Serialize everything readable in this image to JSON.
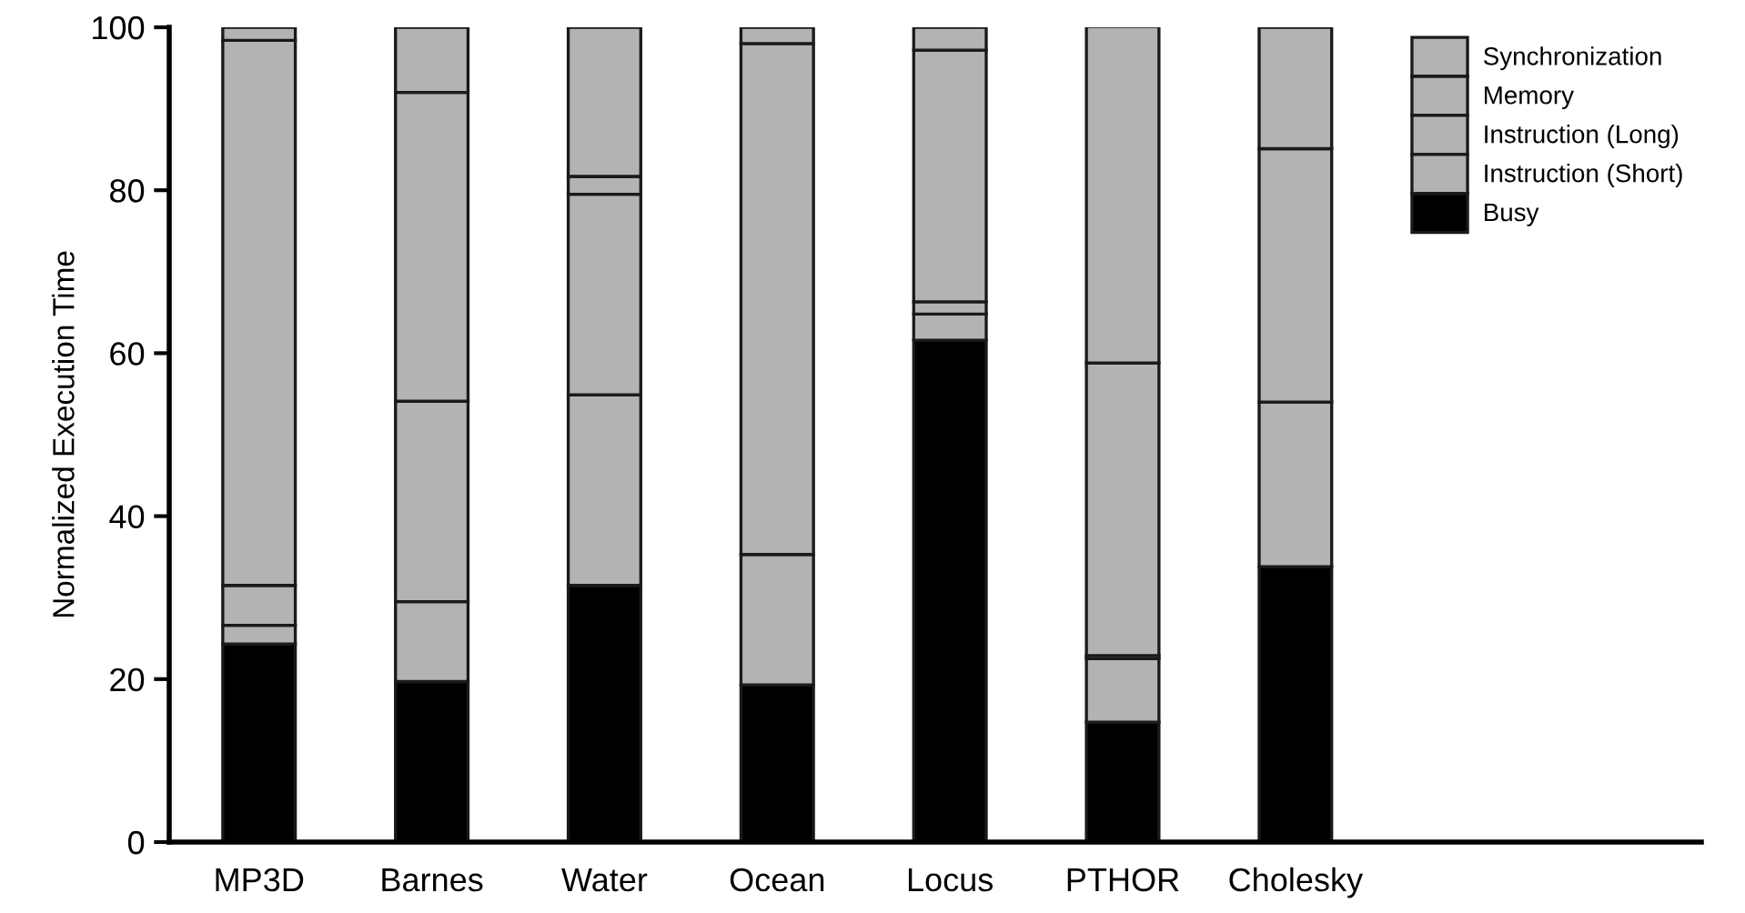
{
  "chart_data": {
    "type": "bar",
    "stacked": true,
    "ylabel": "Normalized Execution Time",
    "categories": [
      "MP3D",
      "Barnes",
      "Water",
      "Ocean",
      "Locus",
      "PTHOR",
      "Cholesky"
    ],
    "series": [
      {
        "name": "Busy",
        "color": "#000000",
        "values": [
          24.3,
          19.7,
          31.5,
          19.3,
          61.6,
          14.7,
          33.8
        ]
      },
      {
        "name": "Instruction (Short)",
        "color": "#b3b3b3",
        "values": [
          2.3,
          9.8,
          23.4,
          16.0,
          3.2,
          7.8,
          20.2
        ]
      },
      {
        "name": "Instruction (Long)",
        "color": "#b3b3b3",
        "values": [
          4.9,
          24.6,
          24.6,
          0,
          1.5,
          0.4,
          31.1
        ]
      },
      {
        "name": "Memory",
        "color": "#b3b3b3",
        "values": [
          66.9,
          37.9,
          2.2,
          62.7,
          30.9,
          35.9,
          0
        ]
      },
      {
        "name": "Synchronization",
        "color": "#b3b3b3",
        "values": [
          1.6,
          8.0,
          18.3,
          2.0,
          2.8,
          41.3,
          14.9
        ]
      }
    ],
    "ylim": [
      0,
      100
    ],
    "yticks": [
      0,
      20,
      40,
      60,
      80,
      100
    ],
    "grid": false,
    "legend": "top right"
  }
}
